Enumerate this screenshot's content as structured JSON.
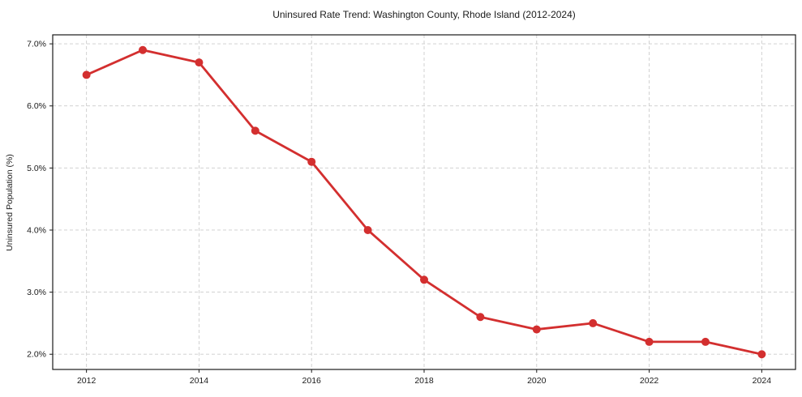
{
  "chart_data": {
    "type": "line",
    "title": "Uninsured Rate Trend: Washington County, Rhode Island (2012-2024)",
    "xlabel": "",
    "ylabel": "Uninsured Population (%)",
    "x": [
      2012,
      2013,
      2014,
      2015,
      2016,
      2017,
      2018,
      2019,
      2020,
      2021,
      2022,
      2023,
      2024
    ],
    "series": [
      {
        "values": [
          6.5,
          6.9,
          6.7,
          5.6,
          5.1,
          4.0,
          3.2,
          2.6,
          2.4,
          2.5,
          2.2,
          2.2,
          2.0
        ],
        "color": "#d32f2f"
      }
    ],
    "xlim": [
      2011.4,
      2024.6
    ],
    "ylim": [
      1.755,
      7.145
    ],
    "x_ticks": [
      2012,
      2014,
      2016,
      2018,
      2020,
      2022,
      2024
    ],
    "x_tick_labels": [
      "2012",
      "2014",
      "2016",
      "2018",
      "2020",
      "2022",
      "2024"
    ],
    "y_ticks": [
      2.0,
      3.0,
      4.0,
      5.0,
      6.0,
      7.0
    ],
    "y_tick_labels": [
      "2.0%",
      "3.0%",
      "4.0%",
      "5.0%",
      "6.0%",
      "7.0%"
    ],
    "grid": true,
    "grid_color": "#cccccc",
    "spine_color": "#1a1a1a",
    "background_color": "#ffffff",
    "legend": "none"
  }
}
